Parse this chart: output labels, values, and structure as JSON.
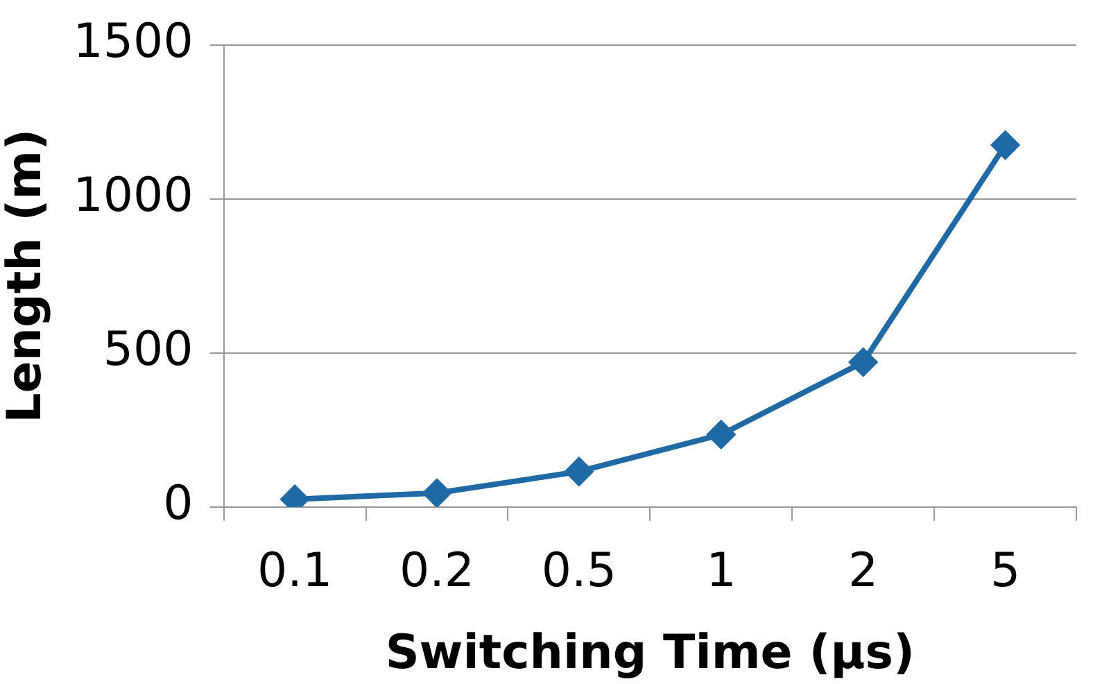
{
  "chart_data": {
    "type": "line",
    "xlabel": "Switching Time (µs)",
    "ylabel": "Length (m)",
    "categories": [
      "0.1",
      "0.2",
      "0.5",
      "1",
      "2",
      "5"
    ],
    "series": [
      {
        "color": "#1f6aa5",
        "values": [
          25,
          45,
          115,
          235,
          470,
          1175
        ]
      }
    ],
    "ylim": [
      0,
      1500
    ],
    "yticks": [
      0,
      500,
      1000,
      1500
    ],
    "grid": "y",
    "legend": false,
    "marker": "diamond",
    "line_style": "solid"
  }
}
